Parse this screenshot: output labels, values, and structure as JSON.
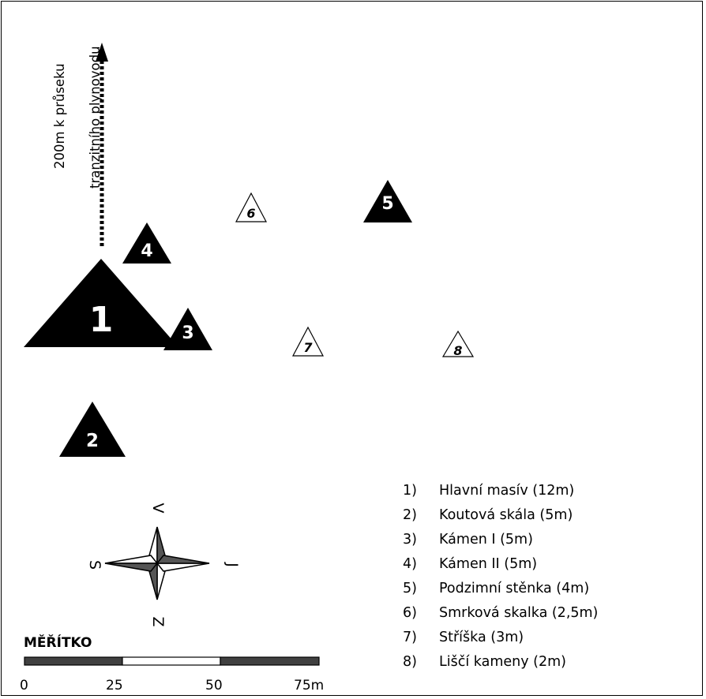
{
  "sites": [
    {
      "id": 1,
      "label": "1",
      "style": "filled",
      "size": "large"
    },
    {
      "id": 2,
      "label": "2",
      "style": "filled",
      "size": "medium"
    },
    {
      "id": 3,
      "label": "3",
      "style": "filled",
      "size": "medium"
    },
    {
      "id": 4,
      "label": "4",
      "style": "filled",
      "size": "medium"
    },
    {
      "id": 5,
      "label": "5",
      "style": "filled",
      "size": "medium"
    },
    {
      "id": 6,
      "label": "6",
      "style": "outline",
      "size": "small"
    },
    {
      "id": 7,
      "label": "7",
      "style": "outline",
      "size": "small"
    },
    {
      "id": 8,
      "label": "8",
      "style": "outline",
      "size": "small"
    }
  ],
  "pipeline_note": {
    "line1": "200m k průseku",
    "line2": "tranzitního plynovodu"
  },
  "compass": {
    "north": "V",
    "east": "J",
    "south": "Z",
    "west": "S",
    "dark_color": "#555555",
    "light_color": "#ffffff"
  },
  "legend": [
    {
      "num": "1)",
      "text": "Hlavní masív (12m)"
    },
    {
      "num": "2)",
      "text": "Koutová skála (5m)"
    },
    {
      "num": "3)",
      "text": "Kámen I (5m)"
    },
    {
      "num": "4)",
      "text": "Kámen II (5m)"
    },
    {
      "num": "5)",
      "text": "Podzimní stěnka (4m)"
    },
    {
      "num": "6)",
      "text": "Smrková skalka (2,5m)"
    },
    {
      "num": "7)",
      "text": "Stříška (3m)"
    },
    {
      "num": "8)",
      "text": "Liščí kameny (2m)"
    }
  ],
  "scale": {
    "title": "MĚŘÍTKO",
    "ticks": [
      "0",
      "25",
      "50",
      "75m"
    ],
    "segments": [
      "dark",
      "light",
      "dark"
    ],
    "dark_color": "#404040"
  }
}
